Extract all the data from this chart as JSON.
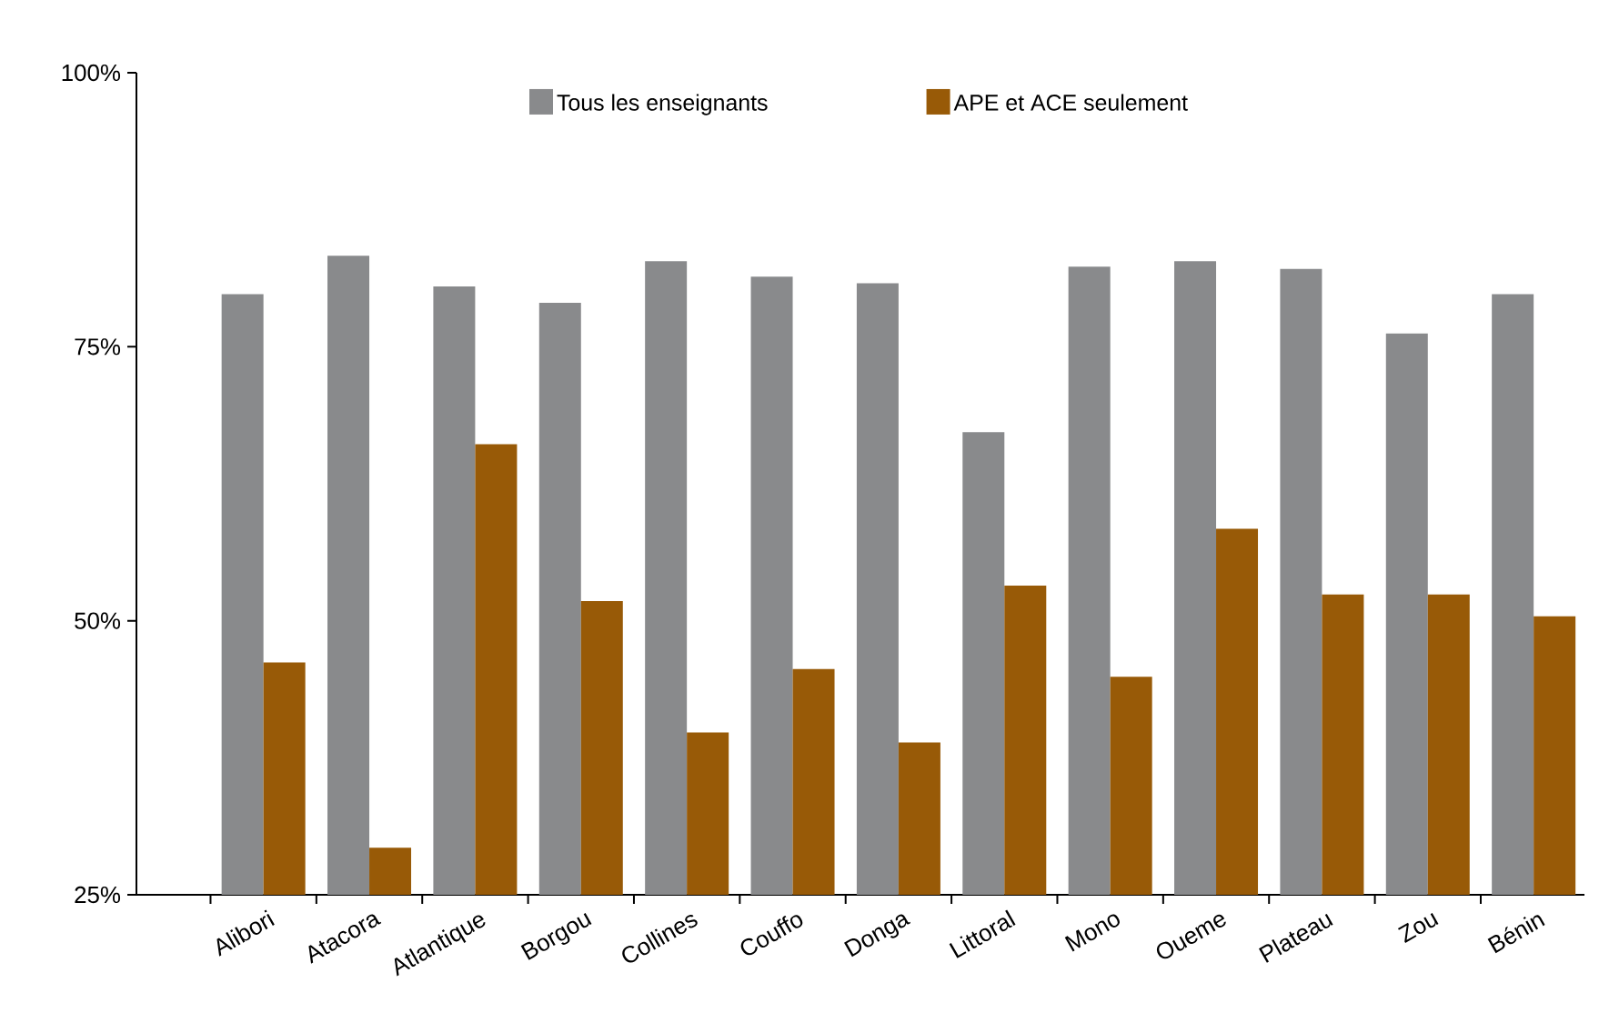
{
  "chart_data": {
    "type": "bar",
    "categories": [
      "Alibori",
      "Atacora",
      "Atlantique",
      "Borgou",
      "Collines",
      "Couffo",
      "Donga",
      "Littoral",
      "Mono",
      "Oueme",
      "Plateau",
      "Zou",
      "Bénin"
    ],
    "series": [
      {
        "name": "Tous les enseignants",
        "color": "#898a8c",
        "values": [
          79.8,
          83.3,
          80.5,
          79.0,
          82.8,
          81.4,
          80.8,
          67.2,
          82.3,
          82.8,
          82.1,
          76.2,
          79.8
        ]
      },
      {
        "name": "APE et ACE seulement",
        "color": "#985a07",
        "values": [
          46.2,
          29.3,
          66.1,
          51.8,
          39.8,
          45.6,
          38.9,
          53.2,
          44.9,
          58.4,
          52.4,
          52.4,
          50.4
        ]
      }
    ],
    "ylim": [
      25,
      100
    ],
    "yticks": [
      {
        "value": 25,
        "label": "25%"
      },
      {
        "value": 50,
        "label": "50%"
      },
      {
        "value": 75,
        "label": "75%"
      },
      {
        "value": 100,
        "label": "100%"
      }
    ],
    "grid": false,
    "legend": "top"
  }
}
